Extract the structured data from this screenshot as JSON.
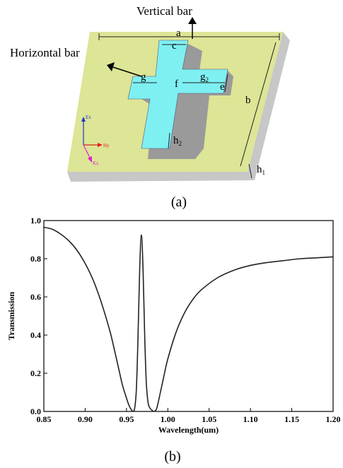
{
  "figure_a": {
    "caption": "(a)",
    "callouts": {
      "vertical_bar": "Vertical bar",
      "horizontal_bar": "Horizontal bar"
    },
    "dimensions": {
      "a": "a",
      "b": "b",
      "c": "c",
      "e": "e",
      "f": "f",
      "g": "g",
      "g2_main": "g",
      "g2_sub": "2",
      "h1_main": "h",
      "h1_sub": "1",
      "h2_main": "h",
      "h2_sub": "2"
    },
    "axes_labels": {
      "ex": "Ex",
      "hy": "Hy",
      "kz": "Kz"
    },
    "colors": {
      "substrate_top": "#dde596",
      "substrate_side": "#c7c7c7",
      "cross_top": "#7ef0f2",
      "cross_side": "#9a9a9a",
      "ex_axis": "#2233cc",
      "hy_axis": "#dd2222",
      "kz_axis": "#dd22cc"
    }
  },
  "figure_b": {
    "caption": "(b)",
    "chart_data": {
      "type": "line",
      "xlabel": "Wavelength(um)",
      "ylabel": "Transmission",
      "xlim": [
        0.85,
        1.2
      ],
      "ylim": [
        0.0,
        1.0
      ],
      "xticks": [
        "0.85",
        "0.90",
        "0.95",
        "1.00",
        "1.05",
        "1.10",
        "1.15",
        "1.20"
      ],
      "yticks": [
        "0.0",
        "0.2",
        "0.4",
        "0.6",
        "0.8",
        "1.0"
      ],
      "grid": false,
      "series": [
        {
          "color": "#222222",
          "x": [
            0.85,
            0.86,
            0.87,
            0.88,
            0.89,
            0.9,
            0.91,
            0.92,
            0.93,
            0.935,
            0.94,
            0.945,
            0.95,
            0.953,
            0.956,
            0.958,
            0.96,
            0.962,
            0.964,
            0.966,
            0.968,
            0.97,
            0.972,
            0.974,
            0.976,
            0.978,
            0.98,
            0.983,
            0.986,
            0.988,
            0.991,
            0.995,
            1.0,
            1.01,
            1.02,
            1.03,
            1.04,
            1.06,
            1.08,
            1.1,
            1.12,
            1.14,
            1.16,
            1.18,
            1.2
          ],
          "y": [
            0.965,
            0.955,
            0.93,
            0.895,
            0.845,
            0.775,
            0.685,
            0.565,
            0.42,
            0.33,
            0.235,
            0.14,
            0.07,
            0.032,
            0.008,
            0.0,
            0.02,
            0.12,
            0.4,
            0.75,
            0.925,
            0.75,
            0.4,
            0.15,
            0.05,
            0.02,
            0.01,
            0.0,
            0.01,
            0.04,
            0.1,
            0.18,
            0.275,
            0.415,
            0.515,
            0.585,
            0.635,
            0.7,
            0.74,
            0.765,
            0.78,
            0.79,
            0.8,
            0.805,
            0.81
          ]
        }
      ]
    }
  }
}
